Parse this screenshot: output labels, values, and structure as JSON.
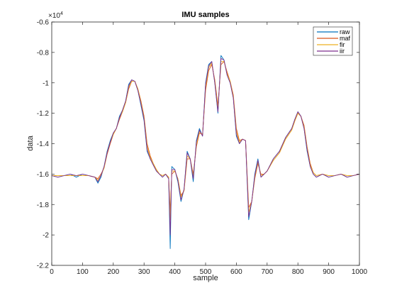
{
  "chart_data": {
    "type": "line",
    "title": "IMU samples",
    "xlabel": "sample",
    "ylabel": "data",
    "exponent_label": "×10",
    "exponent_power": "4",
    "xlim": [
      0,
      1000
    ],
    "ylim": [
      -2.2,
      -0.6
    ],
    "x_ticks": [
      0,
      100,
      200,
      300,
      400,
      500,
      600,
      700,
      800,
      900,
      1000
    ],
    "x_tick_labels": [
      "0",
      "100",
      "200",
      "300",
      "400",
      "500",
      "600",
      "700",
      "800",
      "900",
      "1000"
    ],
    "y_ticks": [
      -2.2,
      -2.0,
      -1.8,
      -1.6,
      -1.4,
      -1.2,
      -1.0,
      -0.8,
      -0.6
    ],
    "y_tick_labels": [
      "-2.2",
      "-2",
      "-1.8",
      "-1.6",
      "-1.4",
      "-1.2",
      "-1",
      "-0.8",
      "-0.6"
    ],
    "grid": false,
    "legend_position": "top-right",
    "x": [
      0,
      20,
      40,
      60,
      80,
      100,
      120,
      140,
      150,
      160,
      170,
      180,
      190,
      200,
      210,
      220,
      230,
      240,
      250,
      260,
      270,
      280,
      290,
      300,
      310,
      320,
      330,
      340,
      350,
      360,
      370,
      380,
      385,
      390,
      400,
      410,
      420,
      430,
      440,
      450,
      460,
      470,
      480,
      490,
      500,
      510,
      520,
      530,
      540,
      550,
      560,
      570,
      580,
      590,
      600,
      610,
      620,
      630,
      640,
      650,
      660,
      670,
      680,
      690,
      700,
      720,
      740,
      760,
      780,
      790,
      800,
      810,
      820,
      830,
      840,
      850,
      860,
      880,
      900,
      920,
      940,
      960,
      980,
      1000
    ],
    "series": [
      {
        "name": "raw",
        "color": "#0072bd",
        "values": [
          -1.61,
          -1.62,
          -1.61,
          -1.6,
          -1.62,
          -1.6,
          -1.61,
          -1.62,
          -1.66,
          -1.62,
          -1.55,
          -1.45,
          -1.38,
          -1.33,
          -1.3,
          -1.22,
          -1.18,
          -1.12,
          -1.01,
          -0.98,
          -0.99,
          -1.05,
          -1.15,
          -1.25,
          -1.45,
          -1.5,
          -1.54,
          -1.58,
          -1.6,
          -1.62,
          -1.6,
          -1.63,
          -2.09,
          -1.55,
          -1.57,
          -1.65,
          -1.78,
          -1.7,
          -1.45,
          -1.5,
          -1.65,
          -1.38,
          -1.3,
          -1.35,
          -1.0,
          -0.88,
          -0.86,
          -1.0,
          -1.2,
          -0.82,
          -0.85,
          -0.95,
          -1.0,
          -1.1,
          -1.35,
          -1.4,
          -1.37,
          -1.38,
          -1.9,
          -1.78,
          -1.6,
          -1.5,
          -1.62,
          -1.6,
          -1.58,
          -1.5,
          -1.45,
          -1.36,
          -1.3,
          -1.24,
          -1.19,
          -1.22,
          -1.3,
          -1.45,
          -1.55,
          -1.6,
          -1.62,
          -1.6,
          -1.62,
          -1.61,
          -1.6,
          -1.62,
          -1.61,
          -1.6
        ]
      },
      {
        "name": "maf",
        "color": "#d95319",
        "values": [
          -1.61,
          -1.61,
          -1.61,
          -1.61,
          -1.61,
          -1.61,
          -1.61,
          -1.62,
          -1.63,
          -1.6,
          -1.56,
          -1.47,
          -1.4,
          -1.34,
          -1.3,
          -1.24,
          -1.19,
          -1.13,
          -1.04,
          -0.99,
          -0.99,
          -1.04,
          -1.12,
          -1.22,
          -1.4,
          -1.48,
          -1.53,
          -1.57,
          -1.6,
          -1.61,
          -1.6,
          -1.62,
          -1.85,
          -1.6,
          -1.58,
          -1.63,
          -1.74,
          -1.71,
          -1.5,
          -1.5,
          -1.6,
          -1.42,
          -1.33,
          -1.34,
          -1.05,
          -0.92,
          -0.88,
          -0.98,
          -1.15,
          -0.88,
          -0.86,
          -0.93,
          -0.99,
          -1.08,
          -1.3,
          -1.38,
          -1.37,
          -1.38,
          -1.82,
          -1.78,
          -1.63,
          -1.53,
          -1.6,
          -1.6,
          -1.58,
          -1.51,
          -1.46,
          -1.37,
          -1.31,
          -1.25,
          -1.2,
          -1.22,
          -1.28,
          -1.42,
          -1.53,
          -1.59,
          -1.61,
          -1.6,
          -1.61,
          -1.61,
          -1.6,
          -1.61,
          -1.61,
          -1.6
        ]
      },
      {
        "name": "fir",
        "color": "#edb120",
        "values": [
          -1.61,
          -1.61,
          -1.61,
          -1.61,
          -1.61,
          -1.61,
          -1.61,
          -1.62,
          -1.64,
          -1.61,
          -1.56,
          -1.46,
          -1.39,
          -1.34,
          -1.3,
          -1.23,
          -1.19,
          -1.13,
          -1.03,
          -0.99,
          -0.99,
          -1.04,
          -1.13,
          -1.23,
          -1.42,
          -1.49,
          -1.53,
          -1.57,
          -1.6,
          -1.61,
          -1.6,
          -1.62,
          -1.9,
          -1.58,
          -1.58,
          -1.63,
          -1.75,
          -1.71,
          -1.48,
          -1.5,
          -1.61,
          -1.41,
          -1.32,
          -1.34,
          -1.03,
          -0.9,
          -0.87,
          -0.99,
          -1.17,
          -0.86,
          -0.86,
          -0.94,
          -0.99,
          -1.09,
          -1.32,
          -1.39,
          -1.37,
          -1.38,
          -1.85,
          -1.78,
          -1.62,
          -1.52,
          -1.61,
          -1.6,
          -1.58,
          -1.51,
          -1.46,
          -1.37,
          -1.31,
          -1.25,
          -1.2,
          -1.22,
          -1.29,
          -1.43,
          -1.54,
          -1.59,
          -1.61,
          -1.6,
          -1.61,
          -1.61,
          -1.6,
          -1.61,
          -1.61,
          -1.6
        ]
      },
      {
        "name": "iir",
        "color": "#7e2f8e",
        "values": [
          -1.61,
          -1.62,
          -1.61,
          -1.6,
          -1.61,
          -1.6,
          -1.61,
          -1.62,
          -1.65,
          -1.61,
          -1.55,
          -1.46,
          -1.39,
          -1.33,
          -1.3,
          -1.23,
          -1.18,
          -1.12,
          -1.02,
          -0.98,
          -0.99,
          -1.05,
          -1.14,
          -1.24,
          -1.44,
          -1.5,
          -1.54,
          -1.58,
          -1.6,
          -1.62,
          -1.6,
          -1.63,
          -2.0,
          -1.57,
          -1.57,
          -1.64,
          -1.77,
          -1.7,
          -1.46,
          -1.5,
          -1.63,
          -1.39,
          -1.31,
          -1.35,
          -1.01,
          -0.89,
          -0.86,
          -1.0,
          -1.19,
          -0.84,
          -0.85,
          -0.95,
          -1.0,
          -1.1,
          -1.34,
          -1.4,
          -1.37,
          -1.38,
          -1.88,
          -1.78,
          -1.61,
          -1.51,
          -1.62,
          -1.6,
          -1.58,
          -1.5,
          -1.45,
          -1.36,
          -1.3,
          -1.24,
          -1.19,
          -1.22,
          -1.3,
          -1.44,
          -1.55,
          -1.6,
          -1.62,
          -1.6,
          -1.62,
          -1.61,
          -1.6,
          -1.62,
          -1.61,
          -1.6
        ]
      }
    ]
  }
}
